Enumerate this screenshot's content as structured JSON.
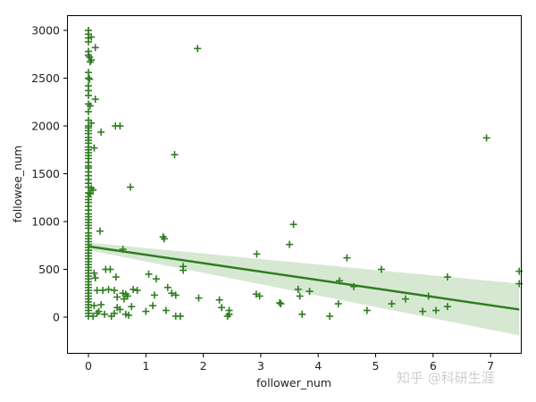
{
  "chart_data": {
    "type": "scatter",
    "title": "",
    "xlabel": "follower_num",
    "ylabel": "followee_num",
    "xlim": [
      -0.37,
      7.5
    ],
    "ylim": [
      -370,
      3160
    ],
    "x_ticks": [
      0,
      1,
      2,
      3,
      4,
      5,
      6,
      7
    ],
    "y_ticks": [
      0,
      500,
      1000,
      1500,
      2000,
      2500,
      3000
    ],
    "grid": false,
    "legend": null,
    "marker": "+",
    "color": "#2e7d1f",
    "ci_band_color": "#d6e8d2",
    "regression": {
      "x": [
        0,
        7.5
      ],
      "y": [
        740,
        80
      ],
      "ci_upper": [
        780,
        350
      ],
      "ci_lower": [
        700,
        -190
      ]
    },
    "series": [
      {
        "name": "points",
        "points": [
          [
            0,
            3000
          ],
          [
            0,
            2960
          ],
          [
            0,
            2920
          ],
          [
            0.05,
            2930
          ],
          [
            0,
            2880
          ],
          [
            0.12,
            2820
          ],
          [
            0,
            2780
          ],
          [
            0,
            2740
          ],
          [
            0.02,
            2720
          ],
          [
            0.05,
            2690
          ],
          [
            0.03,
            2670
          ],
          [
            0,
            2560
          ],
          [
            0,
            2500
          ],
          [
            0.02,
            2490
          ],
          [
            0,
            2420
          ],
          [
            0,
            2370
          ],
          [
            0,
            2320
          ],
          [
            0.12,
            2280
          ],
          [
            0,
            2230
          ],
          [
            0.03,
            2210
          ],
          [
            0,
            2150
          ],
          [
            0,
            2060
          ],
          [
            0.05,
            2030
          ],
          [
            0,
            2000
          ],
          [
            0,
            1980
          ],
          [
            0,
            1950
          ],
          [
            0,
            1920
          ],
          [
            0.22,
            1935
          ],
          [
            0.47,
            2000
          ],
          [
            0.55,
            2000
          ],
          [
            0,
            1880
          ],
          [
            0,
            1850
          ],
          [
            0,
            1820
          ],
          [
            0,
            1780
          ],
          [
            0.1,
            1770
          ],
          [
            0,
            1750
          ],
          [
            0,
            1720
          ],
          [
            0,
            1690
          ],
          [
            0,
            1660
          ],
          [
            0,
            1620
          ],
          [
            0,
            1580
          ],
          [
            0,
            1560
          ],
          [
            0,
            1520
          ],
          [
            0,
            1480
          ],
          [
            0,
            1440
          ],
          [
            0,
            1400
          ],
          [
            0,
            1360
          ],
          [
            0.05,
            1350
          ],
          [
            0.08,
            1330
          ],
          [
            0,
            1300
          ],
          [
            0.03,
            1290
          ],
          [
            0,
            1260
          ],
          [
            0,
            1230
          ],
          [
            0,
            1200
          ],
          [
            0,
            1160
          ],
          [
            0,
            1120
          ],
          [
            0,
            1080
          ],
          [
            0,
            1050
          ],
          [
            0,
            1020
          ],
          [
            0,
            990
          ],
          [
            0,
            960
          ],
          [
            0,
            930
          ],
          [
            0.2,
            900
          ],
          [
            0,
            880
          ],
          [
            0,
            850
          ],
          [
            0,
            820
          ],
          [
            0,
            790
          ],
          [
            0,
            760
          ],
          [
            0,
            730
          ],
          [
            0,
            700
          ],
          [
            0,
            670
          ],
          [
            0,
            640
          ],
          [
            0,
            610
          ],
          [
            0,
            580
          ],
          [
            0,
            550
          ],
          [
            0,
            520
          ],
          [
            0,
            490
          ],
          [
            0,
            460
          ],
          [
            0,
            430
          ],
          [
            0,
            400
          ],
          [
            0,
            370
          ],
          [
            0,
            340
          ],
          [
            0,
            310
          ],
          [
            0,
            280
          ],
          [
            0,
            250
          ],
          [
            0,
            220
          ],
          [
            0,
            190
          ],
          [
            0,
            160
          ],
          [
            0,
            130
          ],
          [
            0,
            100
          ],
          [
            0,
            70
          ],
          [
            0,
            40
          ],
          [
            0,
            10
          ],
          [
            0.73,
            1360
          ],
          [
            1.5,
            1700
          ],
          [
            1.9,
            2810
          ],
          [
            6.93,
            1875
          ],
          [
            0.6,
            710
          ],
          [
            1.3,
            840
          ],
          [
            1.32,
            820
          ],
          [
            3.57,
            970
          ],
          [
            3.5,
            760
          ],
          [
            2.93,
            660
          ],
          [
            4.5,
            620
          ],
          [
            5.1,
            500
          ],
          [
            6.25,
            420
          ],
          [
            7.5,
            480
          ],
          [
            7.5,
            350
          ],
          [
            0.1,
            460
          ],
          [
            0.12,
            410
          ],
          [
            0.3,
            500
          ],
          [
            0.38,
            500
          ],
          [
            0.48,
            420
          ],
          [
            0.78,
            290
          ],
          [
            1.05,
            450
          ],
          [
            1.18,
            400
          ],
          [
            1.38,
            310
          ],
          [
            1.45,
            250
          ],
          [
            1.65,
            530
          ],
          [
            1.65,
            490
          ],
          [
            0.15,
            280
          ],
          [
            0.25,
            280
          ],
          [
            0.35,
            290
          ],
          [
            0.45,
            280
          ],
          [
            0.5,
            210
          ],
          [
            0.6,
            250
          ],
          [
            0.62,
            190
          ],
          [
            0.65,
            240
          ],
          [
            0.68,
            220
          ],
          [
            0.85,
            280
          ],
          [
            1.15,
            230
          ],
          [
            1.52,
            230
          ],
          [
            1.92,
            200
          ],
          [
            2.28,
            180
          ],
          [
            2.32,
            100
          ],
          [
            2.45,
            70
          ],
          [
            2.45,
            30
          ],
          [
            2.42,
            10
          ],
          [
            2.92,
            240
          ],
          [
            2.98,
            220
          ],
          [
            3.33,
            150
          ],
          [
            3.35,
            140
          ],
          [
            3.65,
            290
          ],
          [
            3.68,
            220
          ],
          [
            3.72,
            30
          ],
          [
            3.85,
            270
          ],
          [
            4.2,
            10
          ],
          [
            4.35,
            140
          ],
          [
            4.37,
            380
          ],
          [
            4.62,
            320
          ],
          [
            4.85,
            70
          ],
          [
            5.28,
            140
          ],
          [
            5.52,
            190
          ],
          [
            5.82,
            60
          ],
          [
            5.92,
            220
          ],
          [
            6.05,
            70
          ],
          [
            6.25,
            110
          ],
          [
            0.1,
            120
          ],
          [
            0.18,
            60
          ],
          [
            0.22,
            130
          ],
          [
            0.28,
            30
          ],
          [
            0.45,
            40
          ],
          [
            0.5,
            100
          ],
          [
            0.55,
            80
          ],
          [
            0.7,
            20
          ],
          [
            0.65,
            30
          ],
          [
            0.75,
            110
          ],
          [
            1.0,
            60
          ],
          [
            1.12,
            120
          ],
          [
            1.35,
            70
          ],
          [
            1.52,
            10
          ],
          [
            1.6,
            10
          ],
          [
            0.08,
            10
          ],
          [
            0.15,
            40
          ],
          [
            0.4,
            10
          ]
        ]
      }
    ]
  },
  "watermark": "知乎 @科研生涯"
}
